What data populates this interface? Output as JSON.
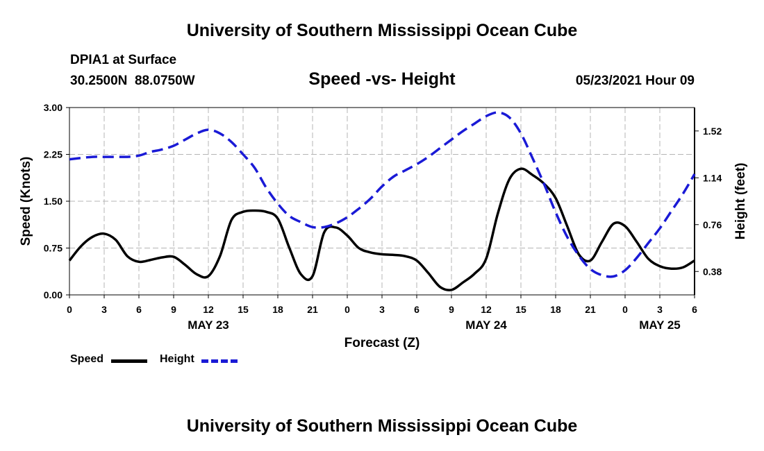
{
  "header": {
    "title": "University of Southern Mississippi Ocean Cube",
    "station": "DPIA1 at Surface",
    "coords": "30.2500N  88.0750W",
    "chart_title": "Speed -vs- Height",
    "datetime": "05/23/2021 Hour 09"
  },
  "footer": {
    "title": "University of Southern Mississippi Ocean Cube"
  },
  "legend": {
    "speed_label": "Speed",
    "height_label": "Height"
  },
  "colors": {
    "speed": "#000000",
    "height": "#1a1ad6",
    "grid": "#b4b4b4"
  },
  "chart_data": {
    "type": "line",
    "title": "Speed -vs- Height",
    "xlabel": "Forecast (Z)",
    "ylabel": "Speed (Knots)",
    "y2label": "Height (feet)",
    "x_range": [
      0,
      54
    ],
    "ylim": [
      0,
      3
    ],
    "y2lim": [
      0.19,
      1.71
    ],
    "x_ticks": [
      {
        "h": 0,
        "label": "0"
      },
      {
        "h": 3,
        "label": "3"
      },
      {
        "h": 6,
        "label": "6"
      },
      {
        "h": 9,
        "label": "9"
      },
      {
        "h": 12,
        "label": "12"
      },
      {
        "h": 15,
        "label": "15"
      },
      {
        "h": 18,
        "label": "18"
      },
      {
        "h": 21,
        "label": "21"
      },
      {
        "h": 24,
        "label": "0"
      },
      {
        "h": 27,
        "label": "3"
      },
      {
        "h": 30,
        "label": "6"
      },
      {
        "h": 33,
        "label": "9"
      },
      {
        "h": 36,
        "label": "12"
      },
      {
        "h": 39,
        "label": "15"
      },
      {
        "h": 42,
        "label": "18"
      },
      {
        "h": 45,
        "label": "21"
      },
      {
        "h": 48,
        "label": "0"
      },
      {
        "h": 51,
        "label": "3"
      },
      {
        "h": 54,
        "label": "6"
      }
    ],
    "date_labels": [
      {
        "h": 12,
        "label": "MAY 23"
      },
      {
        "h": 36,
        "label": "MAY 24"
      },
      {
        "h": 51,
        "label": "MAY 25"
      }
    ],
    "y_ticks": [
      "0.00",
      "0.75",
      "1.50",
      "2.25",
      "3.00"
    ],
    "y2_ticks": [
      {
        "v": 0.38,
        "label": "0.38"
      },
      {
        "v": 0.76,
        "label": "0.76"
      },
      {
        "v": 1.14,
        "label": "1.14"
      },
      {
        "v": 1.52,
        "label": "1.52"
      }
    ],
    "series": [
      {
        "name": "Speed",
        "axis": "left",
        "style": "solid",
        "x": [
          0,
          1,
          2,
          3,
          4,
          5,
          6,
          7,
          8,
          9,
          10,
          11,
          12,
          13,
          14,
          15,
          16,
          17,
          18,
          19,
          20,
          21,
          22,
          23,
          24,
          25,
          26,
          27,
          28,
          29,
          30,
          31,
          32,
          33,
          34,
          35,
          36,
          37,
          38,
          39,
          40,
          41,
          42,
          43,
          44,
          45,
          46,
          47,
          48,
          49,
          50,
          51,
          52,
          53,
          54
        ],
        "values": [
          0.55,
          0.78,
          0.93,
          0.98,
          0.88,
          0.62,
          0.53,
          0.56,
          0.6,
          0.61,
          0.48,
          0.33,
          0.3,
          0.62,
          1.2,
          1.33,
          1.35,
          1.33,
          1.22,
          0.75,
          0.33,
          0.3,
          1.0,
          1.08,
          0.95,
          0.75,
          0.68,
          0.65,
          0.64,
          0.62,
          0.55,
          0.35,
          0.13,
          0.08,
          0.2,
          0.34,
          0.58,
          1.3,
          1.85,
          2.02,
          1.92,
          1.78,
          1.55,
          1.1,
          0.65,
          0.55,
          0.85,
          1.14,
          1.1,
          0.85,
          0.58,
          0.46,
          0.42,
          0.44,
          0.55
        ]
      },
      {
        "name": "Height",
        "axis": "right",
        "style": "dashed",
        "x": [
          0,
          2,
          3,
          4,
          5,
          6,
          7,
          8,
          9,
          10,
          11,
          12,
          13,
          14,
          15,
          16,
          17,
          18,
          19,
          20,
          21,
          22,
          23,
          24,
          25,
          26,
          27,
          28,
          29,
          30,
          31,
          32,
          33,
          34,
          35,
          36,
          37,
          38,
          39,
          40,
          41,
          42,
          43,
          44,
          45,
          46,
          47,
          48,
          49,
          50,
          51,
          52,
          53,
          54
        ],
        "values": [
          1.29,
          1.31,
          1.31,
          1.31,
          1.31,
          1.32,
          1.35,
          1.37,
          1.4,
          1.45,
          1.5,
          1.53,
          1.5,
          1.43,
          1.33,
          1.22,
          1.06,
          0.93,
          0.83,
          0.78,
          0.74,
          0.74,
          0.77,
          0.82,
          0.89,
          0.97,
          1.07,
          1.15,
          1.2,
          1.25,
          1.31,
          1.38,
          1.45,
          1.52,
          1.58,
          1.64,
          1.67,
          1.63,
          1.5,
          1.3,
          1.09,
          0.86,
          0.66,
          0.51,
          0.4,
          0.35,
          0.34,
          0.39,
          0.49,
          0.61,
          0.73,
          0.87,
          1.01,
          1.17
        ]
      }
    ]
  }
}
